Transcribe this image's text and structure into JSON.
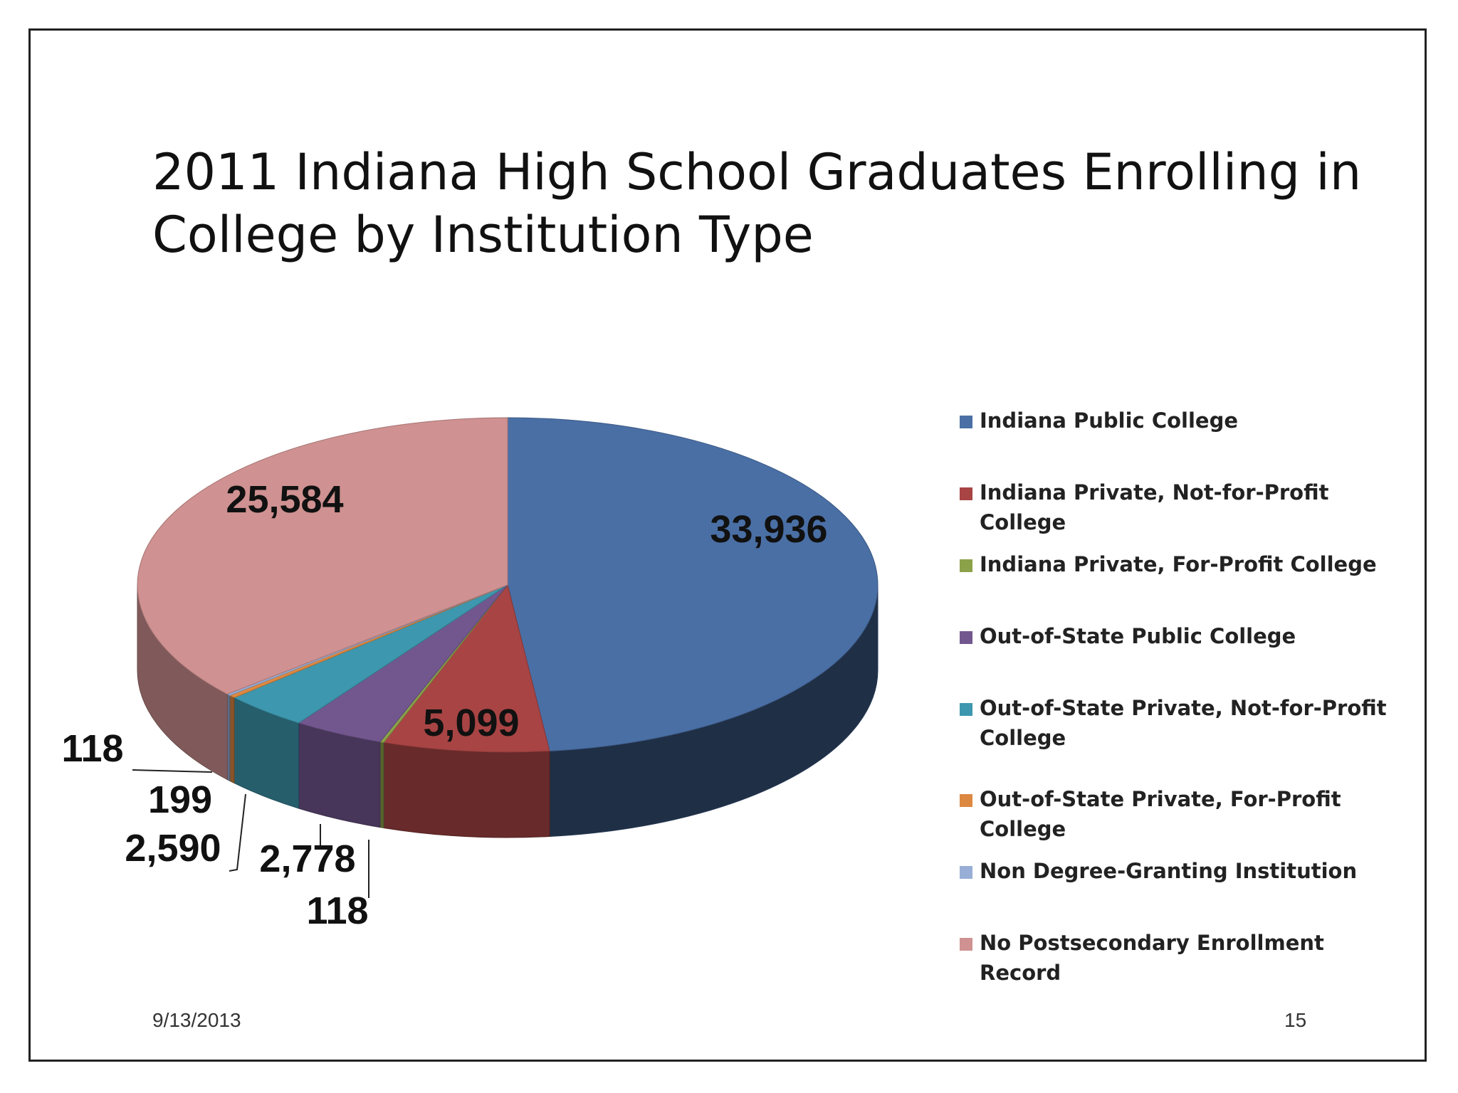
{
  "slide": {
    "title_line1": "2011 Indiana High School Graduates Enrolling in",
    "title_line2": "College by Institution Type",
    "date": "9/13/2013",
    "page_number": "15"
  },
  "chart_data": {
    "type": "pie",
    "title": "2011 Indiana High School Graduates Enrolling in College by Institution Type",
    "legend_position": "right",
    "slices": [
      {
        "name": "Indiana Public College",
        "value": 33936,
        "label": "33,936",
        "color": "#4A6FA5"
      },
      {
        "name": "Indiana Private, Not-for-Profit College",
        "value": 5099,
        "label": "5,099",
        "color": "#A84444"
      },
      {
        "name": "Indiana Private, For-Profit College",
        "value": 118,
        "label": "118",
        "color": "#8CA24A"
      },
      {
        "name": "Out-of-State Public College",
        "value": 2778,
        "label": "2,778",
        "color": "#72578F"
      },
      {
        "name": "Out-of-State Private, Not-for-Profit College",
        "value": 2590,
        "label": "2,590",
        "color": "#3D97AE"
      },
      {
        "name": "Out-of-State Private, For-Profit College",
        "value": 199,
        "label": "199",
        "color": "#DD8840"
      },
      {
        "name": "Non Degree-Granting Institution",
        "value": 118,
        "label": "118",
        "color": "#98AED6"
      },
      {
        "name": "No Postsecondary Enrollment Record",
        "value": 25584,
        "label": "25,584",
        "color": "#CF9191"
      }
    ],
    "legend_labels": [
      [
        "Indiana Public College"
      ],
      [
        "Indiana Private, Not-for-Profit College"
      ],
      [
        "Indiana Private, For-Profit College"
      ],
      [
        "Out-of-State Public College"
      ],
      [
        "Out-of-State Private, Not-for-Profit",
        "College"
      ],
      [
        "Out-of-State Private, For-Profit College"
      ],
      [
        "Non Degree-Granting Institution"
      ],
      [
        "No Postsecondary Enrollment Record"
      ]
    ]
  }
}
